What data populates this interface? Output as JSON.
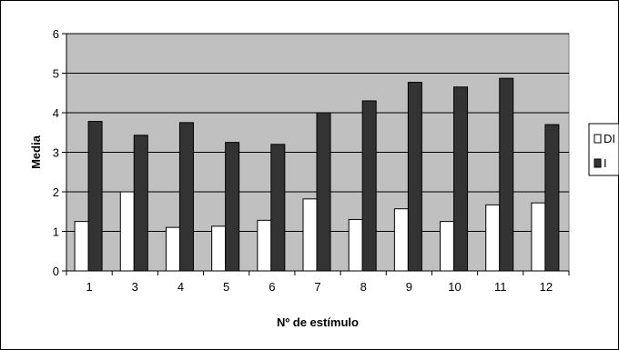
{
  "chart_data": {
    "type": "bar",
    "title": "",
    "xlabel": "Nº de estímulo",
    "ylabel": "Media",
    "categories": [
      "1",
      "3",
      "4",
      "5",
      "6",
      "7",
      "8",
      "9",
      "10",
      "11",
      "12"
    ],
    "series": [
      {
        "name": "DI",
        "color": "#ffffff",
        "values": [
          1.25,
          2.0,
          1.1,
          1.13,
          1.28,
          1.82,
          1.3,
          1.57,
          1.25,
          1.67,
          1.72
        ]
      },
      {
        "name": "I",
        "color": "#333333",
        "values": [
          3.78,
          3.43,
          3.75,
          3.25,
          3.2,
          4.0,
          4.3,
          4.77,
          4.65,
          4.87,
          3.7
        ]
      }
    ],
    "ylim": [
      0,
      6
    ],
    "yticks": [
      0,
      1,
      2,
      3,
      4,
      5,
      6
    ],
    "grid": true,
    "plot_background": "#c0c0c0",
    "legend_position": "right"
  }
}
